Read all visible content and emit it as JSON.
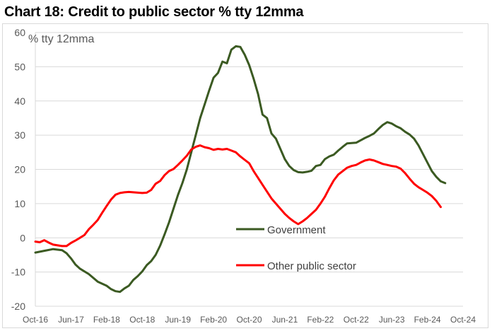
{
  "chart_title": "Chart 18: Credit to public sector % tty 12mma",
  "chart_data": {
    "type": "line",
    "title": "Chart 18: Credit to public sector % tty 12mma",
    "unit_label": "% tty 12mma",
    "xlabel": "",
    "ylabel": "",
    "x_tick_labels": [
      "Oct-16",
      "Jun-17",
      "Feb-18",
      "Oct-18",
      "Jun-19",
      "Feb-20",
      "Oct-20",
      "Jun-21",
      "Feb-22",
      "Oct-22",
      "Jun-23",
      "Feb-24",
      "Oct-24"
    ],
    "y_ticks": [
      60,
      50,
      40,
      30,
      20,
      10,
      0,
      -10,
      -20
    ],
    "ylim": [
      -20,
      60
    ],
    "x_domain_months": [
      0,
      96
    ],
    "grid": "horizontal",
    "legend_position": "inside-bottom-center",
    "series": [
      {
        "name": "Government",
        "color": "#3b5a22",
        "points": [
          [
            0,
            -4.3
          ],
          [
            2,
            -3.8
          ],
          [
            4,
            -3.3
          ],
          [
            6,
            -3.6
          ],
          [
            7,
            -4.5
          ],
          [
            8,
            -6
          ],
          [
            9,
            -7.8
          ],
          [
            10,
            -9
          ],
          [
            12,
            -10.6
          ],
          [
            14,
            -12.8
          ],
          [
            16,
            -14
          ],
          [
            17,
            -15
          ],
          [
            18,
            -15.6
          ],
          [
            19,
            -15.8
          ],
          [
            20,
            -14.8
          ],
          [
            21,
            -14
          ],
          [
            22,
            -12.3
          ],
          [
            23,
            -11.2
          ],
          [
            24,
            -9.8
          ],
          [
            25,
            -8
          ],
          [
            26,
            -6.8
          ],
          [
            27,
            -5
          ],
          [
            28,
            -2.3
          ],
          [
            29,
            1
          ],
          [
            30,
            4.5
          ],
          [
            31,
            8.5
          ],
          [
            32,
            12.5
          ],
          [
            33,
            16
          ],
          [
            34,
            20
          ],
          [
            35,
            25
          ],
          [
            36,
            30
          ],
          [
            37,
            35
          ],
          [
            38,
            39
          ],
          [
            39,
            43
          ],
          [
            40,
            46.8
          ],
          [
            41,
            48.2
          ],
          [
            42,
            51.5
          ],
          [
            43,
            51
          ],
          [
            44,
            55
          ],
          [
            45,
            56
          ],
          [
            46,
            55.8
          ],
          [
            47,
            53.5
          ],
          [
            48,
            50.5
          ],
          [
            49,
            46.5
          ],
          [
            50,
            42
          ],
          [
            51,
            36
          ],
          [
            52,
            35
          ],
          [
            53,
            30.5
          ],
          [
            54,
            29
          ],
          [
            55,
            26
          ],
          [
            56,
            23
          ],
          [
            57,
            21
          ],
          [
            58,
            19.8
          ],
          [
            59,
            19.2
          ],
          [
            60,
            19.1
          ],
          [
            61,
            19.3
          ],
          [
            62,
            19.6
          ],
          [
            63,
            21
          ],
          [
            64,
            21.3
          ],
          [
            65,
            23
          ],
          [
            66,
            23.8
          ],
          [
            67,
            24.3
          ],
          [
            68,
            25.5
          ],
          [
            69,
            26.6
          ],
          [
            70,
            27.6
          ],
          [
            71,
            27.7
          ],
          [
            72,
            27.8
          ],
          [
            73,
            28.5
          ],
          [
            74,
            29.2
          ],
          [
            75,
            29.8
          ],
          [
            76,
            30.5
          ],
          [
            77,
            31.8
          ],
          [
            78,
            33
          ],
          [
            79,
            33.8
          ],
          [
            80,
            33.4
          ],
          [
            81,
            32.6
          ],
          [
            82,
            32
          ],
          [
            83,
            31
          ],
          [
            84,
            30.2
          ],
          [
            85,
            29
          ],
          [
            86,
            27
          ],
          [
            87,
            24.5
          ],
          [
            88,
            22
          ],
          [
            89,
            19.5
          ],
          [
            90,
            17.8
          ],
          [
            91,
            16.5
          ],
          [
            92,
            16
          ]
        ]
      },
      {
        "name": "Other public sector",
        "color": "#ff0000",
        "points": [
          [
            0,
            -1.1
          ],
          [
            1,
            -1.3
          ],
          [
            2,
            -0.7
          ],
          [
            3,
            -1.4
          ],
          [
            4,
            -2
          ],
          [
            5,
            -2.2
          ],
          [
            6,
            -2.4
          ],
          [
            7,
            -2.4
          ],
          [
            8,
            -1.5
          ],
          [
            9,
            -0.8
          ],
          [
            10,
            0
          ],
          [
            11,
            0.8
          ],
          [
            12,
            2.5
          ],
          [
            13,
            3.8
          ],
          [
            14,
            5.2
          ],
          [
            15,
            7.3
          ],
          [
            16,
            9.3
          ],
          [
            17,
            11.2
          ],
          [
            18,
            12.6
          ],
          [
            19,
            13.1
          ],
          [
            20,
            13.3
          ],
          [
            21,
            13.4
          ],
          [
            22,
            13.3
          ],
          [
            23,
            13.2
          ],
          [
            24,
            13.1
          ],
          [
            25,
            13.2
          ],
          [
            26,
            14
          ],
          [
            27,
            15.8
          ],
          [
            28,
            16.6
          ],
          [
            29,
            18.3
          ],
          [
            30,
            19.5
          ],
          [
            31,
            20.1
          ],
          [
            32,
            21.3
          ],
          [
            33,
            22.6
          ],
          [
            34,
            24
          ],
          [
            35,
            25.8
          ],
          [
            36,
            26.6
          ],
          [
            37,
            27
          ],
          [
            38,
            26.5
          ],
          [
            39,
            26.2
          ],
          [
            40,
            25.7
          ],
          [
            41,
            26
          ],
          [
            42,
            25.8
          ],
          [
            43,
            26
          ],
          [
            44,
            25.5
          ],
          [
            45,
            25
          ],
          [
            46,
            23.8
          ],
          [
            47,
            22.8
          ],
          [
            48,
            21.8
          ],
          [
            49,
            19.5
          ],
          [
            50,
            17.5
          ],
          [
            51,
            15.5
          ],
          [
            52,
            13.5
          ],
          [
            53,
            11.5
          ],
          [
            54,
            10
          ],
          [
            55,
            8.5
          ],
          [
            56,
            7
          ],
          [
            57,
            5.8
          ],
          [
            58,
            4.8
          ],
          [
            59,
            4
          ],
          [
            60,
            4.8
          ],
          [
            61,
            5.8
          ],
          [
            62,
            7
          ],
          [
            63,
            8.2
          ],
          [
            64,
            10
          ],
          [
            65,
            12
          ],
          [
            66,
            14.5
          ],
          [
            67,
            16.8
          ],
          [
            68,
            18.5
          ],
          [
            69,
            19.5
          ],
          [
            70,
            20.5
          ],
          [
            71,
            21
          ],
          [
            72,
            21.3
          ],
          [
            73,
            22
          ],
          [
            74,
            22.6
          ],
          [
            75,
            22.9
          ],
          [
            76,
            22.6
          ],
          [
            77,
            22.1
          ],
          [
            78,
            21.6
          ],
          [
            79,
            21.3
          ],
          [
            80,
            21
          ],
          [
            81,
            20.8
          ],
          [
            82,
            20.2
          ],
          [
            83,
            18.9
          ],
          [
            84,
            17.3
          ],
          [
            85,
            15.8
          ],
          [
            86,
            14.8
          ],
          [
            87,
            14
          ],
          [
            88,
            13.2
          ],
          [
            89,
            12.2
          ],
          [
            90,
            10.8
          ],
          [
            91,
            9
          ]
        ]
      }
    ]
  }
}
